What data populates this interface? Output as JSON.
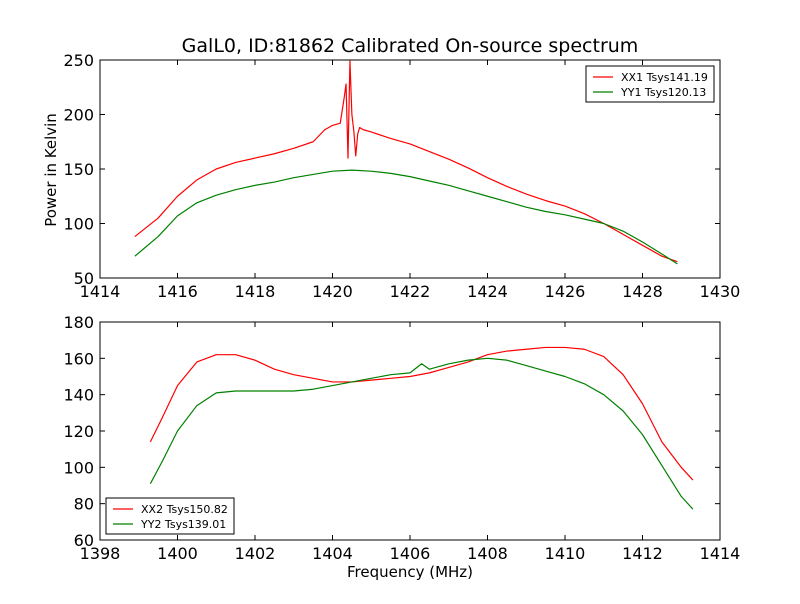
{
  "chart_data": [
    {
      "type": "line",
      "title": "GalL0, ID:81862 Calibrated On-source spectrum",
      "xlabel": "",
      "ylabel": "Power in Kelvin",
      "xlim": [
        1414,
        1430
      ],
      "ylim": [
        50,
        250
      ],
      "xticks": [
        1414,
        1416,
        1418,
        1420,
        1422,
        1424,
        1426,
        1428,
        1430
      ],
      "yticks": [
        50,
        100,
        150,
        200,
        250
      ],
      "legend_position": "top-right",
      "series": [
        {
          "name": "XX1 Tsys141.19",
          "color": "#ff0000",
          "x": [
            1414.9,
            1415.5,
            1416.0,
            1416.5,
            1417.0,
            1417.5,
            1418.0,
            1418.5,
            1419.0,
            1419.5,
            1419.8,
            1420.0,
            1420.2,
            1420.3,
            1420.35,
            1420.4,
            1420.45,
            1420.5,
            1420.55,
            1420.6,
            1420.65,
            1420.7,
            1420.8,
            1421.0,
            1421.5,
            1422.0,
            1422.5,
            1423.0,
            1423.5,
            1424.0,
            1424.5,
            1425.0,
            1425.5,
            1426.0,
            1426.5,
            1427.0,
            1427.5,
            1428.0,
            1428.5,
            1428.9
          ],
          "y": [
            88,
            105,
            125,
            140,
            150,
            156,
            160,
            164,
            169,
            175,
            186,
            190,
            192,
            215,
            228,
            160,
            249,
            200,
            185,
            162,
            182,
            188,
            186,
            184,
            178,
            173,
            166,
            159,
            151,
            142,
            134,
            127,
            121,
            116,
            109,
            100,
            90,
            80,
            70,
            65
          ]
        },
        {
          "name": "YY1 Tsys120.13",
          "color": "#008000",
          "x": [
            1414.9,
            1415.5,
            1416.0,
            1416.5,
            1417.0,
            1417.5,
            1418.0,
            1418.5,
            1419.0,
            1419.5,
            1420.0,
            1420.5,
            1421.0,
            1421.5,
            1422.0,
            1422.5,
            1423.0,
            1423.5,
            1424.0,
            1424.5,
            1425.0,
            1425.5,
            1426.0,
            1426.5,
            1427.0,
            1427.5,
            1428.0,
            1428.5,
            1428.9
          ],
          "y": [
            70,
            88,
            107,
            119,
            126,
            131,
            135,
            138,
            142,
            145,
            148,
            149,
            148,
            146,
            143,
            139,
            135,
            130,
            125,
            120,
            115,
            111,
            108,
            104,
            100,
            93,
            83,
            72,
            63
          ]
        }
      ]
    },
    {
      "type": "line",
      "title": "",
      "xlabel": "Frequency (MHz)",
      "ylabel": "",
      "xlim": [
        1398,
        1414
      ],
      "ylim": [
        60,
        180
      ],
      "xticks": [
        1398,
        1400,
        1402,
        1404,
        1406,
        1408,
        1410,
        1412,
        1414
      ],
      "yticks": [
        60,
        80,
        100,
        120,
        140,
        160,
        180
      ],
      "legend_position": "lower-left",
      "series": [
        {
          "name": "XX2 Tsys150.82",
          "color": "#ff0000",
          "x": [
            1399.3,
            1399.6,
            1400.0,
            1400.5,
            1401.0,
            1401.5,
            1402.0,
            1402.5,
            1403.0,
            1403.5,
            1404.0,
            1404.5,
            1405.0,
            1405.5,
            1406.0,
            1406.5,
            1407.0,
            1407.5,
            1408.0,
            1408.5,
            1409.0,
            1409.5,
            1410.0,
            1410.5,
            1411.0,
            1411.5,
            1412.0,
            1412.5,
            1413.0,
            1413.3
          ],
          "y": [
            114,
            127,
            145,
            158,
            162,
            162,
            159,
            154,
            151,
            149,
            147,
            147,
            148,
            149,
            150,
            152,
            155,
            158,
            162,
            164,
            165,
            166,
            166,
            165,
            161,
            151,
            135,
            114,
            100,
            93
          ]
        },
        {
          "name": "YY2 Tsys139.01",
          "color": "#008000",
          "x": [
            1399.3,
            1399.6,
            1400.0,
            1400.5,
            1401.0,
            1401.5,
            1402.0,
            1402.5,
            1403.0,
            1403.5,
            1404.0,
            1404.5,
            1405.0,
            1405.5,
            1406.0,
            1406.3,
            1406.5,
            1407.0,
            1407.5,
            1408.0,
            1408.5,
            1409.0,
            1409.5,
            1410.0,
            1410.5,
            1411.0,
            1411.5,
            1412.0,
            1412.5,
            1413.0,
            1413.3
          ],
          "y": [
            91,
            103,
            120,
            134,
            141,
            142,
            142,
            142,
            142,
            143,
            145,
            147,
            149,
            151,
            152,
            157,
            154,
            157,
            159,
            160,
            159,
            156,
            153,
            150,
            146,
            140,
            131,
            118,
            101,
            84,
            77
          ]
        }
      ]
    }
  ]
}
